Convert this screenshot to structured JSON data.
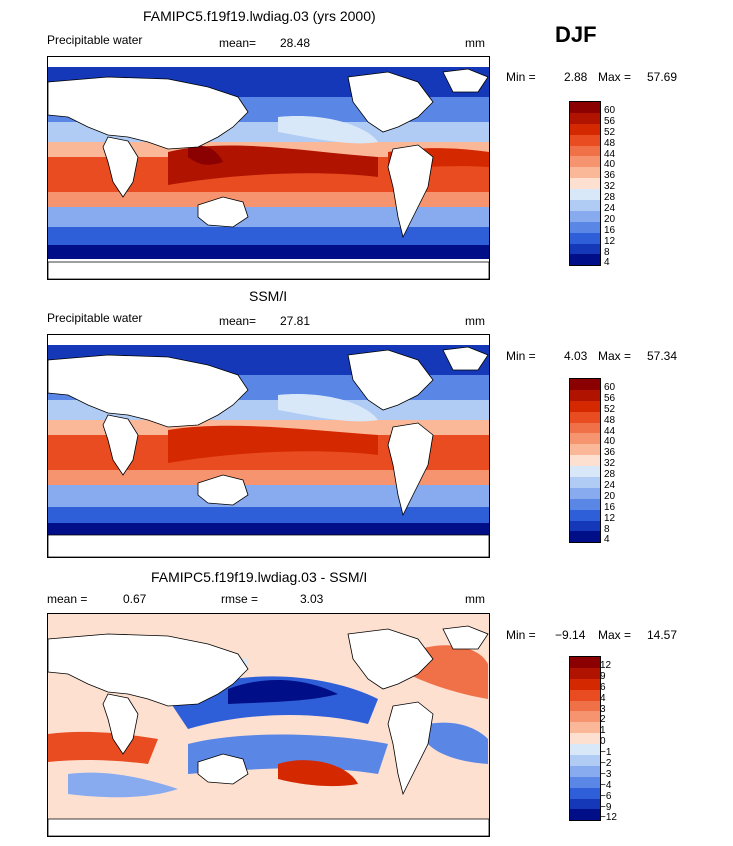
{
  "season": "DJF",
  "panels": [
    {
      "title": "FAMIPC5.f19f19.lwdiag.03 (yrs 2000)",
      "left_label": "Precipitable water",
      "stat_label": "mean=",
      "stat_value": "28.48",
      "units": "mm",
      "min_label": "Min =",
      "min_value": "2.88",
      "max_label": "Max =",
      "max_value": "57.69",
      "colorbar_levels": [
        "60",
        "56",
        "52",
        "48",
        "44",
        "40",
        "36",
        "32",
        "28",
        "24",
        "20",
        "16",
        "12",
        "8",
        "4"
      ]
    },
    {
      "title": "SSM/I",
      "left_label": "Precipitable water",
      "stat_label": "mean=",
      "stat_value": "27.81",
      "units": "mm",
      "min_label": "Min =",
      "min_value": "4.03",
      "max_label": "Max =",
      "max_value": "57.34",
      "colorbar_levels": [
        "60",
        "56",
        "52",
        "48",
        "44",
        "40",
        "36",
        "32",
        "28",
        "24",
        "20",
        "16",
        "12",
        "8",
        "4"
      ]
    },
    {
      "title": "FAMIPC5.f19f19.lwdiag.03 - SSM/I",
      "mean_label": "mean =",
      "mean_value": "0.67",
      "rmse_label": "rmse =",
      "rmse_value": "3.03",
      "units": "mm",
      "min_label": "Min =",
      "min_value": "−9.14",
      "max_label": "Max =",
      "max_value": "14.57",
      "colorbar_levels": [
        "12",
        "9",
        "6",
        "4",
        "3",
        "2",
        "1",
        "0",
        "−1",
        "−2",
        "−3",
        "−4",
        "−6",
        "−9",
        "−12"
      ]
    }
  ],
  "colors": {
    "scale": [
      "#8b0000",
      "#b01400",
      "#d42800",
      "#e84c20",
      "#f07048",
      "#f79470",
      "#fbb898",
      "#fde0d0",
      "#d8e8f8",
      "#b0ccf4",
      "#88aaee",
      "#5a86e6",
      "#2e5ed8",
      "#1438b8",
      "#000e88"
    ]
  }
}
